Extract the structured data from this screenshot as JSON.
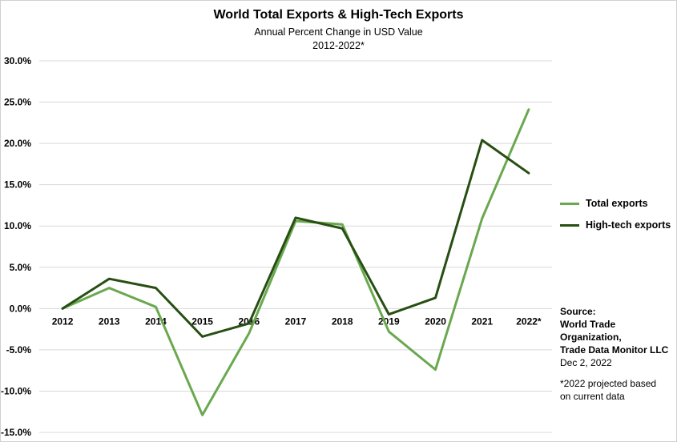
{
  "chart_data": {
    "type": "line",
    "title": "World Total Exports & High-Tech Exports",
    "subtitle": "Annual Percent Change in USD Value",
    "subtitle2": "2012-2022*",
    "categories": [
      "2012",
      "2013",
      "2014",
      "2015",
      "2016",
      "2017",
      "2018",
      "2019",
      "2020",
      "2021",
      "2022*"
    ],
    "series": [
      {
        "name": "Total exports",
        "color": "#6aa84f",
        "values": [
          0.0,
          2.5,
          0.2,
          -12.9,
          -3.0,
          10.6,
          10.2,
          -2.8,
          -7.4,
          10.9,
          24.1
        ]
      },
      {
        "name": "High-tech exports",
        "color": "#274e13",
        "values": [
          0.0,
          3.6,
          2.5,
          -3.4,
          -1.8,
          11.0,
          9.7,
          -0.7,
          1.3,
          20.4,
          16.4
        ]
      }
    ],
    "ylim": [
      -15,
      30
    ],
    "yticks": [
      30,
      25,
      20,
      15,
      10,
      5,
      0,
      -5,
      -10,
      -15
    ],
    "ytick_labels": [
      "30.0%",
      "25.0%",
      "20.0%",
      "15.0%",
      "10.0%",
      "5.0%",
      "0.0%",
      "-5.0%",
      "-10.0%",
      "-15.0%"
    ],
    "grid": true,
    "legend_position": "right"
  },
  "notes": {
    "source_label": "Source:",
    "source_line1": "World Trade Organization,",
    "source_line2": "Trade Data Monitor LLC",
    "date": "Dec 2, 2022",
    "footnote_line1": "*2022 projected based",
    "footnote_line2": "on current data"
  }
}
